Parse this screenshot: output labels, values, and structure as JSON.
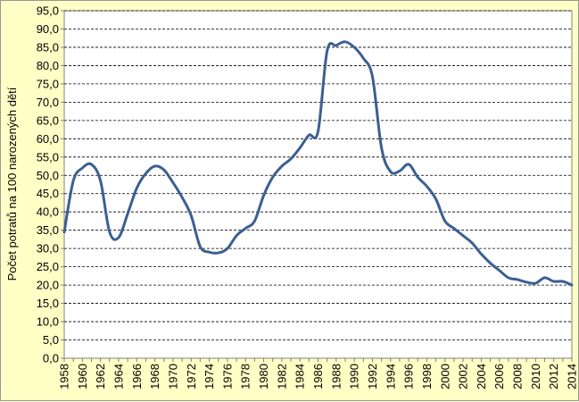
{
  "chart_data": {
    "type": "line",
    "title": "",
    "xlabel": "",
    "ylabel": "Počet potratů na 100 narozených dětí",
    "ylim": [
      0,
      95
    ],
    "xlim": [
      1958,
      2014
    ],
    "yticks": [
      "0,0",
      "5,0",
      "10,0",
      "15,0",
      "20,0",
      "25,0",
      "30,0",
      "35,0",
      "40,0",
      "45,0",
      "50,0",
      "55,0",
      "60,0",
      "65,0",
      "70,0",
      "75,0",
      "80,0",
      "85,0",
      "90,0",
      "95,0"
    ],
    "xticks": [
      "1958",
      "1960",
      "1962",
      "1964",
      "1966",
      "1968",
      "1970",
      "1972",
      "1974",
      "1976",
      "1978",
      "1980",
      "1982",
      "1984",
      "1986",
      "1988",
      "1990",
      "1992",
      "1994",
      "1996",
      "1998",
      "2000",
      "2002",
      "2004",
      "2006",
      "2008",
      "2010",
      "2012",
      "2014"
    ],
    "grid": true,
    "grid_style": "dashed",
    "legend": "none",
    "colors": {
      "line": "#3b5f91",
      "background": "#ffffc6",
      "plot_background": "#ffffff",
      "grid": "#000000"
    },
    "series": [
      {
        "x": [
          1958,
          1959,
          1960,
          1961,
          1962,
          1963,
          1964,
          1965,
          1966,
          1967,
          1968,
          1969,
          1970,
          1971,
          1972,
          1973,
          1974,
          1975,
          1976,
          1977,
          1978,
          1979,
          1980,
          1981,
          1982,
          1983,
          1984,
          1985,
          1986,
          1987,
          1988,
          1989,
          1990,
          1991,
          1992,
          1993,
          1994,
          1995,
          1996,
          1997,
          1998,
          1999,
          2000,
          2001,
          2002,
          2003,
          2004,
          2005,
          2006,
          2007,
          2008,
          2009,
          2010,
          2011,
          2012,
          2013,
          2014
        ],
        "y": [
          34.5,
          48.5,
          52.0,
          53.0,
          48.5,
          34.5,
          33.0,
          39.5,
          46.5,
          50.5,
          52.5,
          51.5,
          48.0,
          44.0,
          39.0,
          30.5,
          29.0,
          28.8,
          30.0,
          33.5,
          35.5,
          37.5,
          44.5,
          49.5,
          52.5,
          54.5,
          57.5,
          61.0,
          62.0,
          84.0,
          85.5,
          86.5,
          85.0,
          82.0,
          77.0,
          57.5,
          51.0,
          51.2,
          53.0,
          49.5,
          47.0,
          43.5,
          37.5,
          35.5,
          33.5,
          31.5,
          28.5,
          26.0,
          24.0,
          22.0,
          21.5,
          20.8,
          20.5,
          22.0,
          21.0,
          21.0,
          20.0
        ]
      }
    ]
  }
}
